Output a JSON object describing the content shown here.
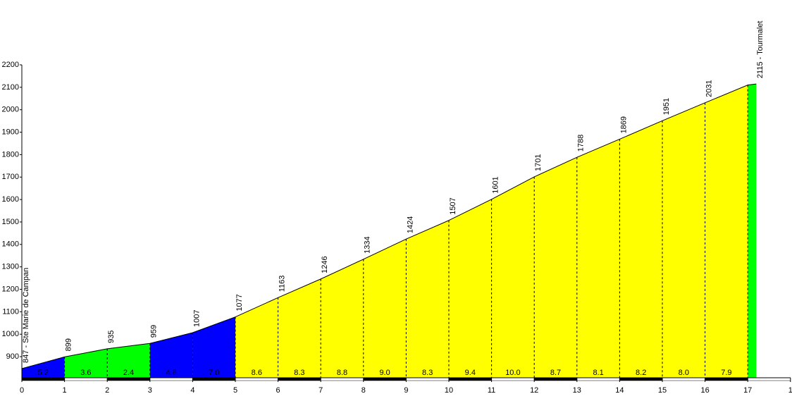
{
  "chart_data": {
    "type": "area",
    "x": [
      0,
      1,
      2,
      3,
      4,
      5,
      6,
      7,
      8,
      9,
      10,
      11,
      12,
      13,
      14,
      15,
      16,
      17,
      17.2
    ],
    "y": [
      847,
      899,
      935,
      959,
      1007,
      1077,
      1163,
      1246,
      1334,
      1424,
      1507,
      1601,
      1701,
      1788,
      1869,
      1951,
      2031,
      2110,
      2115
    ],
    "value_labels": [
      "847 - Ste Marie de Campan",
      "899",
      "935",
      "959",
      "1007",
      "1077",
      "1163",
      "1246",
      "1334",
      "1424",
      "1507",
      "1601",
      "1701",
      "1788",
      "1869",
      "1951",
      "2031",
      null,
      "2115 - Tourmalet"
    ],
    "segments": {
      "gradients": [
        5.2,
        3.6,
        2.4,
        4.8,
        7.0,
        8.6,
        8.3,
        8.8,
        9.0,
        8.3,
        9.4,
        10.0,
        8.7,
        8.1,
        8.2,
        8.0,
        7.9,
        null
      ],
      "gradient_labels": [
        "5.2",
        "3.6",
        "2.4",
        "4.8",
        "7.0",
        "8.6",
        "8.3",
        "8.8",
        "9.0",
        "8.3",
        "9.4",
        "10.0",
        "8.7",
        "8.1",
        "8.2",
        "8.0",
        "7.9",
        null
      ],
      "colors": [
        "#0000ff",
        "#00ff00",
        "#00ff00",
        "#0000ff",
        "#0000ff",
        "#ffff00",
        "#ffff00",
        "#ffff00",
        "#ffff00",
        "#ffff00",
        "#ffff00",
        "#ffff00",
        "#ffff00",
        "#ffff00",
        "#ffff00",
        "#ffff00",
        "#ffff00",
        "#00ff00"
      ]
    },
    "xlim": [
      0,
      18
    ],
    "xticks": [
      0,
      1,
      2,
      3,
      4,
      5,
      6,
      7,
      8,
      9,
      10,
      11,
      12,
      13,
      14,
      15,
      16,
      17,
      {
        "value": 18,
        "label": "1"
      }
    ],
    "ylim": [
      806,
      2200
    ],
    "yticks": [
      900,
      1000,
      1100,
      1200,
      1300,
      1400,
      1500,
      1600,
      1700,
      1800,
      1900,
      2000,
      2100,
      2200
    ]
  }
}
